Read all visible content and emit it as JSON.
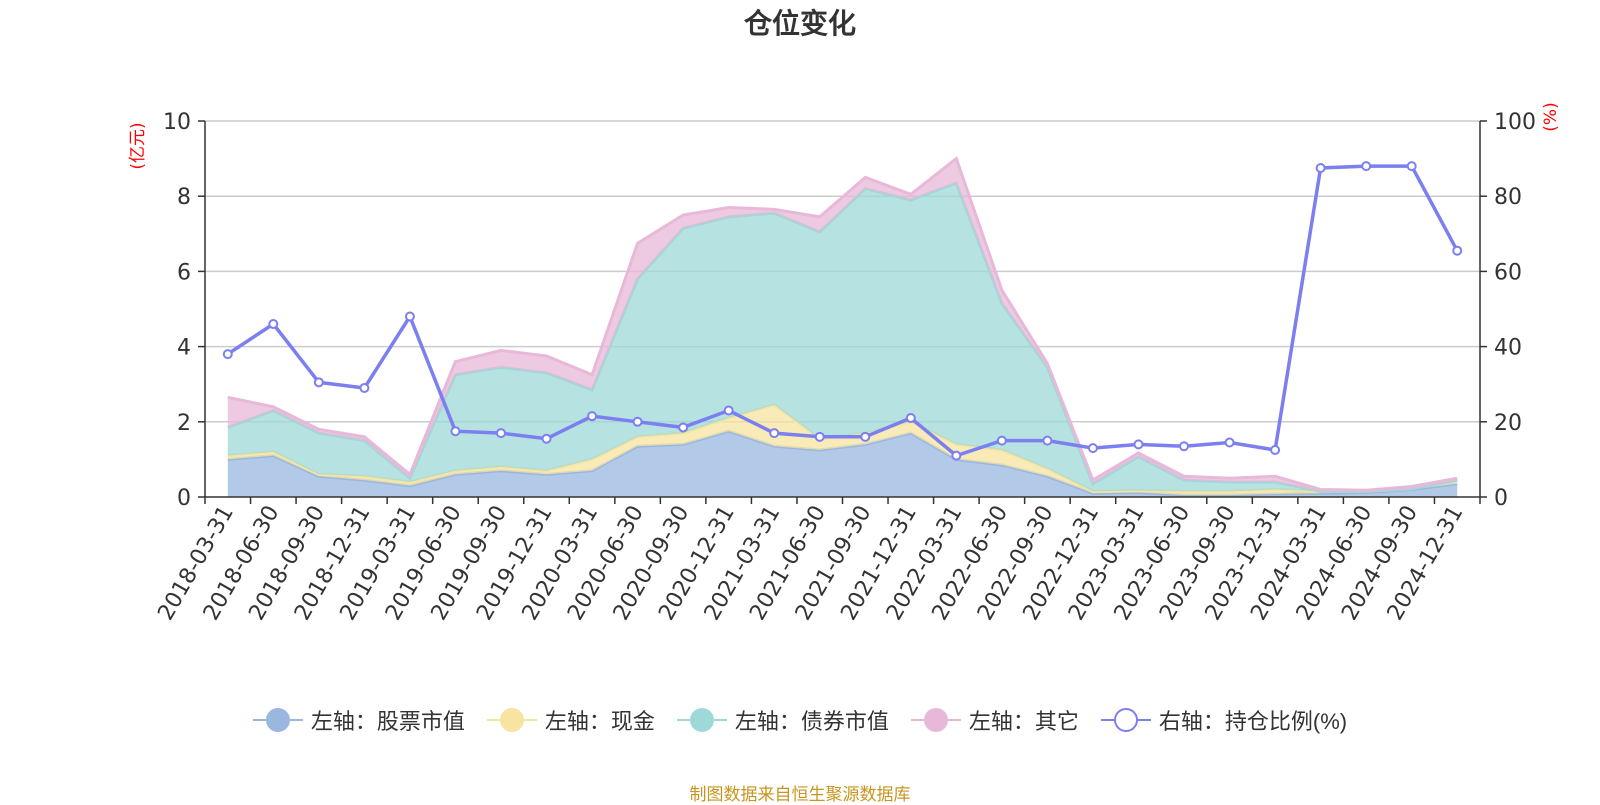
{
  "chart_data": {
    "type": "area",
    "title": "仓位变化",
    "ylabel_left": "(亿元)",
    "ylabel_right": "(%)",
    "ylim_left": [
      0,
      10
    ],
    "ylim_right": [
      0,
      100
    ],
    "left_ticks": [
      "0",
      "2",
      "4",
      "6",
      "8",
      "10"
    ],
    "right_ticks": [
      "0",
      "20",
      "40",
      "60",
      "80",
      "100"
    ],
    "grid": true,
    "legend_position": "bottom",
    "stacked": true,
    "categories": [
      "2018-03-31",
      "2018-06-30",
      "2018-09-30",
      "2018-12-31",
      "2019-03-31",
      "2019-06-30",
      "2019-09-30",
      "2019-12-31",
      "2020-03-31",
      "2020-06-30",
      "2020-09-30",
      "2020-12-31",
      "2021-03-31",
      "2021-06-30",
      "2021-09-30",
      "2021-12-31",
      "2022-03-31",
      "2022-06-30",
      "2022-09-30",
      "2022-12-31",
      "2023-03-31",
      "2023-06-30",
      "2023-09-30",
      "2023-12-31",
      "2024-03-31",
      "2024-06-30",
      "2024-09-30",
      "2024-12-31"
    ],
    "series": [
      {
        "name": "左轴：股票市值",
        "axis": "left",
        "kind": "area",
        "color": "#9ab7e0",
        "values": [
          1.0,
          1.1,
          0.55,
          0.45,
          0.3,
          0.6,
          0.7,
          0.6,
          0.7,
          1.35,
          1.4,
          1.75,
          1.35,
          1.25,
          1.4,
          1.7,
          1.0,
          0.85,
          0.55,
          0.1,
          0.12,
          0.05,
          0.05,
          0.08,
          0.1,
          0.12,
          0.2,
          0.35
        ]
      },
      {
        "name": "左轴：现金",
        "axis": "left",
        "kind": "area",
        "color": "#f7e4a0",
        "values": [
          0.1,
          0.1,
          0.05,
          0.1,
          0.1,
          0.1,
          0.1,
          0.1,
          0.3,
          0.25,
          0.3,
          0.35,
          1.1,
          0.3,
          0.3,
          0.3,
          0.4,
          0.4,
          0.2,
          0.05,
          0.05,
          0.1,
          0.1,
          0.12,
          0.05,
          0.03,
          0.02,
          0.1
        ]
      },
      {
        "name": "左轴：债券市值",
        "axis": "left",
        "kind": "area",
        "color": "#9fd8d8",
        "values": [
          0.75,
          1.1,
          1.1,
          0.95,
          0.1,
          2.55,
          2.65,
          2.6,
          1.85,
          4.2,
          5.45,
          5.35,
          5.1,
          5.5,
          6.5,
          5.9,
          6.95,
          3.9,
          2.7,
          0.2,
          0.9,
          0.3,
          0.25,
          0.2,
          0.0,
          0.0,
          0.0,
          0.0
        ]
      },
      {
        "name": "左轴：其它",
        "axis": "left",
        "kind": "area",
        "color": "#e8b8d8",
        "values": [
          0.8,
          0.1,
          0.1,
          0.1,
          0.1,
          0.35,
          0.45,
          0.45,
          0.4,
          0.95,
          0.35,
          0.25,
          0.1,
          0.4,
          0.3,
          0.15,
          0.65,
          0.35,
          0.1,
          0.1,
          0.1,
          0.1,
          0.1,
          0.15,
          0.05,
          0.03,
          0.06,
          0.05
        ]
      },
      {
        "name": "右轴：持仓比例(%)",
        "axis": "right",
        "kind": "line",
        "color": "#7b7ff0",
        "values": [
          38,
          46,
          30.5,
          29,
          48,
          17.5,
          17,
          15.5,
          21.5,
          20,
          18.5,
          23,
          17,
          16,
          16,
          21,
          11,
          15,
          15,
          13,
          14,
          13.5,
          14.5,
          12.5,
          87.5,
          88,
          88,
          65.5
        ]
      }
    ]
  },
  "footer": {
    "source": "制图数据来自恒生聚源数据库"
  }
}
